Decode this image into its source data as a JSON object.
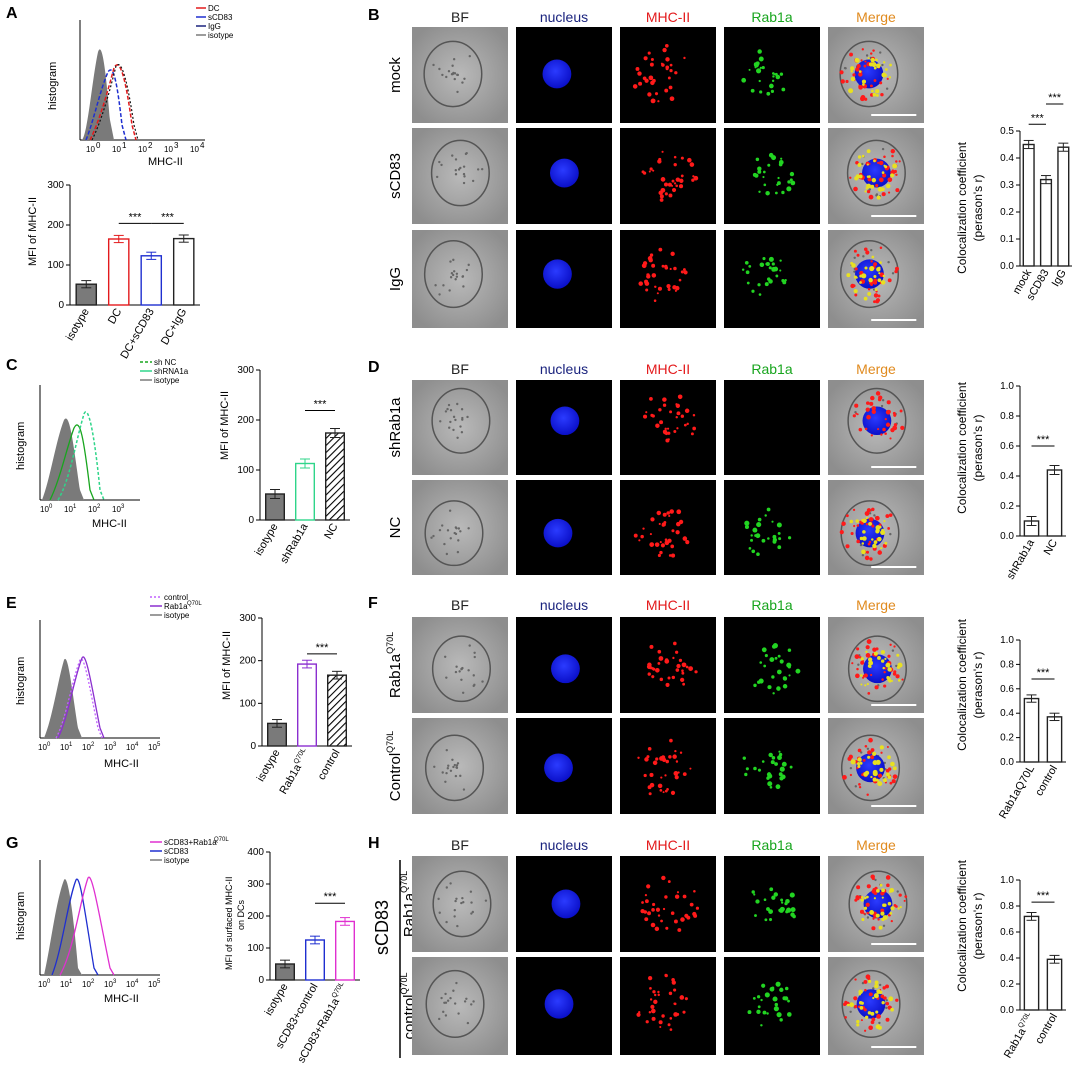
{
  "panels": {
    "A": "A",
    "B": "B",
    "C": "C",
    "D": "D",
    "E": "E",
    "F": "F",
    "G": "G",
    "H": "H"
  },
  "colors": {
    "red": "#e31a1c",
    "blue": "#1f2fd0",
    "navy": "#1a237e",
    "green": "#18a51e",
    "teal": "#2fd58a",
    "purple": "#8b2fcf",
    "magenta": "#e030d0",
    "orange": "#e08a1e",
    "gray": "#7a7a7a"
  },
  "common": {
    "histogram_label": "histogram",
    "mhc_label": "MHC-II",
    "pearson": "(perason's r)",
    "coloc": "Colocalization coefficient",
    "sig": "***"
  },
  "channels": [
    "BF",
    "nucleus",
    "MHC-II",
    "Rab1a",
    "Merge"
  ],
  "A": {
    "legend": [
      "DC",
      "sCD83",
      "IgG",
      "isotype"
    ],
    "hist_ticks": [
      "10",
      "10",
      "10",
      "10",
      "10"
    ],
    "hist_exps": [
      "0",
      "1",
      "2",
      "3",
      "4"
    ],
    "bar": {
      "ylabel": "MFI of MHC-II",
      "categories": [
        "isotype",
        "DC",
        "DC+sCD83",
        "DC+IgG"
      ],
      "values": [
        52,
        165,
        123,
        166
      ],
      "yticks": [
        "0",
        "100",
        "200",
        "300"
      ]
    }
  },
  "B": {
    "rows": [
      "mock",
      "sCD83",
      "IgG"
    ],
    "bar": {
      "categories": [
        "mock",
        "sCD83",
        "IgG"
      ],
      "values": [
        0.45,
        0.32,
        0.44
      ],
      "yticks": [
        "0.0",
        "0.1",
        "0.2",
        "0.3",
        "0.4",
        "0.5"
      ]
    }
  },
  "C": {
    "legend": [
      "sh NC",
      "shRNA1a",
      "isotype"
    ],
    "hist_exps": [
      "0",
      "1",
      "2",
      "3"
    ],
    "bar": {
      "ylabel": "MFI of MHC-II",
      "categories": [
        "isotype",
        "shRab1a",
        "NC"
      ],
      "values": [
        52,
        113,
        174
      ],
      "yticks": [
        "0",
        "100",
        "200",
        "300"
      ]
    }
  },
  "D": {
    "rows": [
      "shRab1a",
      "NC"
    ],
    "bar": {
      "categories": [
        "shRab1a",
        "NC"
      ],
      "values": [
        0.1,
        0.44
      ],
      "yticks": [
        "0.0",
        "0.2",
        "0.4",
        "0.6",
        "0.8",
        "1.0"
      ]
    }
  },
  "E": {
    "legend": [
      "control",
      "Rab1a",
      "isotype"
    ],
    "legend_sup": "Q70L",
    "hist_exps": [
      "0",
      "1",
      "2",
      "3",
      "4",
      "5"
    ],
    "bar": {
      "ylabel": "MFI of MHC-II",
      "categories": [
        "isotype",
        "Rab1a",
        "control"
      ],
      "cat_sup": "Q70L",
      "values": [
        53,
        192,
        166
      ],
      "yticks": [
        "0",
        "100",
        "200",
        "300"
      ]
    }
  },
  "F": {
    "rows": [
      "Rab1a",
      "Control"
    ],
    "row_sup": "Q70L",
    "bar": {
      "categories": [
        "Rab1aQ70L",
        "control"
      ],
      "values": [
        0.52,
        0.37
      ],
      "yticks": [
        "0.0",
        "0.2",
        "0.4",
        "0.6",
        "0.8",
        "1.0"
      ]
    }
  },
  "G": {
    "legend": [
      "sCD83+Rab1a",
      "sCD83",
      "isotype"
    ],
    "legend_sup": "Q70L",
    "hist_exps": [
      "0",
      "1",
      "2",
      "3",
      "4",
      "5"
    ],
    "bar": {
      "ylabel1": "MFI of surfaced MHC-II",
      "ylabel2": "on DCs",
      "categories": [
        "isotype",
        "sCD83+control",
        "sCD83+Rab1a"
      ],
      "cat_sup": "Q70L",
      "values": [
        50,
        125,
        183
      ],
      "yticks": [
        "0",
        "100",
        "200",
        "300",
        "400"
      ]
    }
  },
  "H": {
    "group": "sCD83",
    "rows": [
      "Rab1a",
      "control"
    ],
    "row_sup": "Q70L",
    "bar": {
      "categories": [
        "Rab1a",
        "control"
      ],
      "cat_sup": "Q70L",
      "values": [
        0.72,
        0.39
      ],
      "yticks": [
        "0.0",
        "0.2",
        "0.4",
        "0.6",
        "0.8",
        "1.0"
      ]
    }
  }
}
